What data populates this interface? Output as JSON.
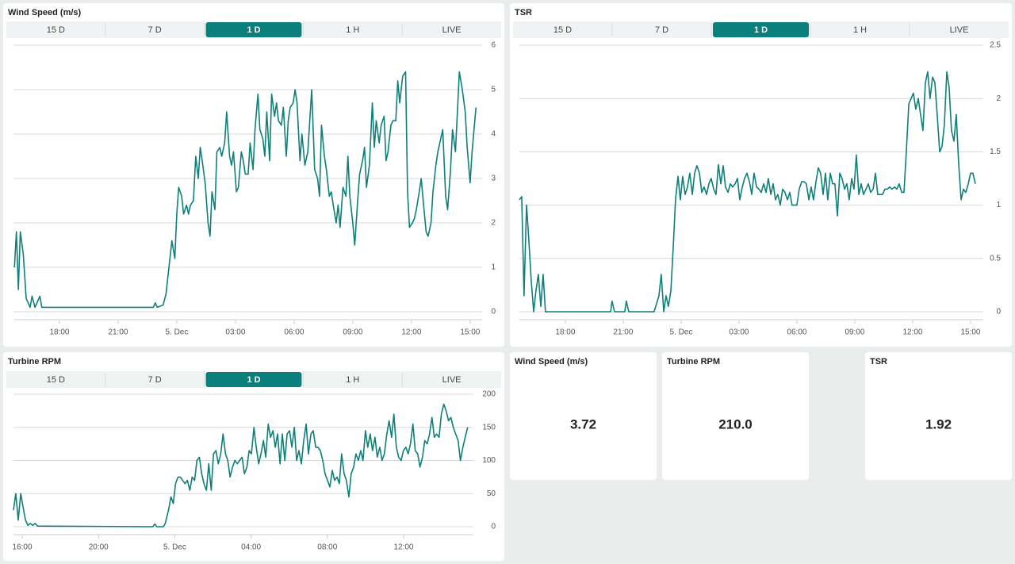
{
  "chart_data": [
    {
      "type": "line",
      "title": "Wind Speed (m/s)",
      "tabs": [
        "15 D",
        "7 D",
        "1 D",
        "1 H",
        "LIVE"
      ],
      "active_tab": 2,
      "color": "#0f7f7a",
      "grid": true,
      "xlim": [
        15.65,
        39.33
      ],
      "ylim": [
        0,
        6
      ],
      "yticks": [
        0,
        1,
        2,
        3,
        4,
        5,
        6
      ],
      "xticks": [
        {
          "value": 18,
          "label": "18:00"
        },
        {
          "value": 21,
          "label": "21:00"
        },
        {
          "value": 24,
          "label": "5. Dec"
        },
        {
          "value": 27,
          "label": "03:00"
        },
        {
          "value": 30,
          "label": "06:00"
        },
        {
          "value": 33,
          "label": "09:00"
        },
        {
          "value": 36,
          "label": "12:00"
        },
        {
          "value": 39,
          "label": "15:00"
        }
      ],
      "x": [
        15.7,
        15.8,
        15.9,
        16.0,
        16.15,
        16.3,
        16.5,
        16.6,
        16.75,
        17.0,
        17.1,
        22.8,
        22.9,
        23.0,
        23.3,
        23.45,
        23.6,
        23.75,
        23.9,
        24.0,
        24.1,
        24.25,
        24.35,
        24.5,
        24.6,
        24.7,
        24.85,
        24.97,
        25.1,
        25.2,
        25.3,
        25.45,
        25.6,
        25.7,
        25.8,
        25.95,
        26.05,
        26.2,
        26.3,
        26.45,
        26.55,
        26.7,
        26.8,
        26.9,
        27.05,
        27.15,
        27.3,
        27.4,
        27.5,
        27.65,
        27.75,
        27.9,
        28.0,
        28.15,
        28.25,
        28.4,
        28.5,
        28.6,
        28.75,
        28.85,
        29.0,
        29.1,
        29.2,
        29.35,
        29.45,
        29.6,
        29.7,
        29.8,
        29.95,
        30.05,
        30.15,
        30.3,
        30.4,
        30.55,
        30.7,
        30.8,
        30.9,
        31.05,
        31.2,
        31.3,
        31.4,
        31.55,
        31.65,
        31.8,
        31.9,
        32.0,
        32.15,
        32.25,
        32.35,
        32.5,
        32.65,
        32.75,
        32.85,
        33.0,
        33.1,
        33.25,
        33.35,
        33.5,
        33.6,
        33.7,
        33.85,
        34.0,
        34.1,
        34.2,
        34.35,
        34.45,
        34.6,
        34.7,
        34.8,
        34.95,
        35.05,
        35.2,
        35.3,
        35.4,
        35.55,
        35.7,
        35.8,
        35.9,
        36.05,
        36.15,
        36.25,
        36.4,
        36.5,
        36.6,
        36.75,
        36.85,
        37.0,
        37.1,
        37.25,
        37.35,
        37.5,
        37.6,
        37.75,
        37.85,
        38.0,
        38.1,
        38.25,
        38.35,
        38.45,
        38.6,
        38.75,
        38.85,
        39.0,
        39.1,
        39.2,
        39.3
      ],
      "values": [
        1.0,
        1.8,
        0.5,
        1.8,
        1.3,
        0.3,
        0.1,
        0.35,
        0.1,
        0.35,
        0.1,
        0.1,
        0.2,
        0.1,
        0.15,
        0.4,
        1.0,
        1.6,
        1.2,
        2.2,
        2.8,
        2.6,
        2.2,
        2.4,
        2.2,
        2.4,
        2.5,
        3.5,
        3.0,
        3.7,
        3.4,
        2.9,
        2.0,
        1.7,
        2.7,
        2.3,
        3.6,
        3.7,
        3.5,
        3.8,
        4.5,
        3.5,
        3.3,
        3.6,
        2.7,
        2.8,
        3.6,
        3.4,
        3.1,
        3.1,
        3.8,
        3.2,
        4.1,
        4.9,
        4.1,
        3.9,
        3.5,
        4.5,
        3.4,
        4.9,
        4.4,
        4.7,
        4.3,
        4.2,
        4.6,
        3.5,
        4.3,
        4.6,
        4.7,
        5.0,
        4.7,
        3.4,
        4.0,
        3.3,
        3.6,
        4.3,
        5.0,
        3.2,
        3.0,
        2.6,
        4.2,
        3.5,
        3.2,
        2.6,
        2.7,
        2.4,
        2.0,
        2.4,
        1.9,
        2.8,
        2.6,
        3.5,
        2.6,
        2.0,
        1.5,
        2.5,
        3.1,
        3.4,
        3.7,
        2.8,
        3.3,
        4.7,
        3.7,
        4.3,
        3.8,
        4.2,
        4.4,
        3.4,
        3.6,
        4.2,
        4.3,
        4.3,
        5.2,
        4.7,
        5.3,
        5.4,
        2.7,
        1.9,
        2.0,
        2.1,
        2.3,
        2.7,
        3.0,
        2.5,
        1.8,
        1.7,
        2.0,
        2.7,
        3.3,
        3.6,
        3.9,
        4.1,
        2.6,
        2.3,
        3.2,
        4.1,
        3.6,
        4.5,
        5.4,
        5.0,
        4.5,
        3.7,
        2.9,
        3.6,
        4.1,
        4.6
      ]
    },
    {
      "type": "line",
      "title": "TSR",
      "tabs": [
        "15 D",
        "7 D",
        "1 D",
        "1 H",
        "LIVE"
      ],
      "active_tab": 2,
      "color": "#0f7f7a",
      "grid": true,
      "xlim": [
        15.62,
        39.33
      ],
      "ylim": [
        0,
        2.5
      ],
      "yticks": [
        0,
        0.5,
        1,
        1.5,
        2,
        2.5
      ],
      "xticks": [
        {
          "value": 18,
          "label": "18:00"
        },
        {
          "value": 21,
          "label": "21:00"
        },
        {
          "value": 24,
          "label": "5. Dec"
        },
        {
          "value": 27,
          "label": "03:00"
        },
        {
          "value": 30,
          "label": "06:00"
        },
        {
          "value": 33,
          "label": "09:00"
        },
        {
          "value": 36,
          "label": "12:00"
        },
        {
          "value": 39,
          "label": "15:00"
        }
      ],
      "x": [
        15.62,
        15.74,
        15.86,
        15.99,
        16.1,
        16.23,
        16.36,
        16.48,
        16.6,
        16.73,
        16.85,
        16.97,
        20.35,
        20.42,
        20.55,
        21.08,
        21.16,
        21.29,
        22.6,
        22.85,
        22.97,
        23.1,
        23.22,
        23.34,
        23.47,
        23.59,
        23.71,
        23.84,
        23.96,
        24.08,
        24.21,
        24.33,
        24.45,
        24.58,
        24.7,
        24.82,
        24.95,
        25.07,
        25.19,
        25.32,
        25.44,
        25.56,
        25.69,
        25.81,
        25.93,
        26.06,
        26.18,
        26.3,
        26.43,
        26.55,
        26.67,
        26.8,
        26.92,
        27.04,
        27.17,
        27.29,
        27.41,
        27.54,
        27.66,
        27.78,
        27.91,
        28.03,
        28.15,
        28.28,
        28.4,
        28.52,
        28.65,
        28.77,
        28.89,
        29.01,
        29.14,
        29.26,
        29.38,
        29.51,
        29.63,
        29.75,
        29.88,
        30.0,
        30.12,
        30.25,
        30.37,
        30.49,
        30.62,
        30.74,
        30.86,
        30.99,
        31.11,
        31.23,
        31.36,
        31.48,
        31.6,
        31.73,
        31.85,
        31.97,
        32.1,
        32.22,
        32.34,
        32.47,
        32.59,
        32.71,
        32.84,
        32.96,
        33.08,
        33.21,
        33.33,
        33.45,
        33.58,
        33.7,
        33.82,
        33.95,
        34.07,
        34.19,
        34.32,
        34.44,
        34.56,
        34.69,
        34.81,
        34.93,
        35.06,
        35.18,
        35.3,
        35.43,
        35.55,
        35.67,
        35.8,
        35.92,
        36.04,
        36.16,
        36.29,
        36.41,
        36.53,
        36.66,
        36.78,
        36.9,
        37.03,
        37.15,
        37.27,
        37.4,
        37.52,
        37.64,
        37.77,
        37.89,
        38.01,
        38.14,
        38.26,
        38.38,
        38.51,
        38.63,
        38.75,
        38.88,
        39.0,
        39.12,
        39.25
      ],
      "values": [
        1.05,
        1.08,
        0.15,
        1.0,
        0.7,
        0.3,
        0.0,
        0.2,
        0.35,
        0.05,
        0.35,
        0,
        0,
        0.1,
        0,
        0,
        0.1,
        0,
        0,
        0.15,
        0.35,
        0,
        0.15,
        0.05,
        0.2,
        0.6,
        1.05,
        1.27,
        1.05,
        1.27,
        1.1,
        1.17,
        1.3,
        1.1,
        1.3,
        1.37,
        1.3,
        1.12,
        1.17,
        1.1,
        1.2,
        1.25,
        1.15,
        1.1,
        1.38,
        1.2,
        1.37,
        1.17,
        1.12,
        1.2,
        1.17,
        1.2,
        1.25,
        1.05,
        1.17,
        1.25,
        1.3,
        1.22,
        1.1,
        1.3,
        1.17,
        1.15,
        1.12,
        1.2,
        1.12,
        1.25,
        1.1,
        1.2,
        1.05,
        1.1,
        1.0,
        1.15,
        1.12,
        1.05,
        1.12,
        1.0,
        1.0,
        1.0,
        1.15,
        1.22,
        1.22,
        1.2,
        1.05,
        1.17,
        1.05,
        1.22,
        1.35,
        1.3,
        1.1,
        1.3,
        1.05,
        1.3,
        1.2,
        1.2,
        0.9,
        1.3,
        1.25,
        1.15,
        1.2,
        1.05,
        1.25,
        1.15,
        1.47,
        1.1,
        1.2,
        1.1,
        1.15,
        1.2,
        1.12,
        1.15,
        1.3,
        1.1,
        1.1,
        1.1,
        1.15,
        1.15,
        1.17,
        1.15,
        1.17,
        1.15,
        1.2,
        1.12,
        1.12,
        1.5,
        1.95,
        2.0,
        2.05,
        1.9,
        2.0,
        1.85,
        1.7,
        2.15,
        2.25,
        2.0,
        2.2,
        2.15,
        1.85,
        1.5,
        1.55,
        1.75,
        2.25,
        2.1,
        1.7,
        1.6,
        1.85,
        1.4,
        1.05,
        1.15,
        1.12,
        1.2,
        1.3,
        1.3,
        1.2
      ]
    },
    {
      "type": "line",
      "title": "Turbine RPM",
      "tabs": [
        "15 D",
        "7 D",
        "1 D",
        "1 H",
        "LIVE"
      ],
      "active_tab": 2,
      "color": "#0f7f7a",
      "grid": true,
      "xlim": [
        15.54,
        39.37
      ],
      "ylim": [
        0,
        200
      ],
      "yticks": [
        0,
        50,
        100,
        150,
        200
      ],
      "xticks": [
        {
          "value": 16,
          "label": "16:00"
        },
        {
          "value": 20,
          "label": "20:00"
        },
        {
          "value": 24,
          "label": "5. Dec"
        },
        {
          "value": 28,
          "label": "04:00"
        },
        {
          "value": 32,
          "label": "08:00"
        },
        {
          "value": 36,
          "label": "12:00"
        }
      ],
      "x": [
        15.54,
        15.66,
        15.79,
        15.92,
        16.04,
        16.17,
        16.3,
        16.42,
        16.55,
        16.68,
        16.8,
        22.84,
        22.96,
        23.05,
        23.4,
        23.5,
        23.67,
        23.8,
        23.92,
        24.04,
        24.17,
        24.29,
        24.41,
        24.54,
        24.66,
        24.79,
        24.91,
        25.04,
        25.16,
        25.29,
        25.41,
        25.53,
        25.66,
        25.78,
        25.91,
        26.03,
        26.16,
        26.28,
        26.41,
        26.53,
        26.66,
        26.78,
        26.9,
        27.03,
        27.15,
        27.28,
        27.4,
        27.53,
        27.65,
        27.78,
        27.9,
        28.02,
        28.15,
        28.27,
        28.4,
        28.52,
        28.65,
        28.77,
        28.9,
        29.02,
        29.15,
        29.27,
        29.39,
        29.52,
        29.64,
        29.77,
        29.89,
        30.02,
        30.14,
        30.27,
        30.39,
        30.51,
        30.64,
        30.76,
        30.89,
        31.01,
        31.14,
        31.26,
        31.39,
        31.51,
        31.63,
        31.76,
        31.88,
        32.01,
        32.13,
        32.26,
        32.38,
        32.51,
        32.63,
        32.75,
        32.88,
        33.0,
        33.13,
        33.25,
        33.38,
        33.5,
        33.63,
        33.75,
        33.87,
        34.0,
        34.12,
        34.25,
        34.37,
        34.5,
        34.62,
        34.75,
        34.87,
        34.99,
        35.12,
        35.24,
        35.37,
        35.49,
        35.62,
        35.74,
        35.87,
        35.99,
        36.12,
        36.24,
        36.36,
        36.49,
        36.61,
        36.74,
        36.86,
        36.99,
        37.11,
        37.24,
        37.36,
        37.49,
        37.61,
        37.73,
        37.86,
        37.98,
        38.11,
        38.23,
        38.36,
        38.48,
        38.61,
        38.73,
        38.86,
        38.98,
        39.11,
        39.23,
        39.36
      ],
      "values": [
        25,
        50,
        10,
        50,
        30,
        10,
        2,
        5,
        2,
        5,
        1,
        0,
        4,
        0,
        0,
        5,
        25,
        45,
        35,
        65,
        75,
        75,
        70,
        65,
        70,
        55,
        75,
        70,
        100,
        105,
        80,
        65,
        55,
        95,
        55,
        110,
        115,
        95,
        110,
        140,
        110,
        100,
        75,
        90,
        100,
        95,
        100,
        105,
        80,
        90,
        115,
        110,
        150,
        120,
        95,
        110,
        130,
        105,
        155,
        135,
        145,
        120,
        140,
        95,
        140,
        100,
        140,
        145,
        120,
        150,
        100,
        115,
        95,
        130,
        155,
        110,
        140,
        145,
        120,
        120,
        115,
        100,
        80,
        70,
        60,
        85,
        70,
        75,
        65,
        110,
        80,
        70,
        45,
        80,
        90,
        110,
        100,
        115,
        100,
        145,
        120,
        140,
        115,
        135,
        105,
        120,
        100,
        110,
        140,
        160,
        135,
        170,
        120,
        105,
        100,
        115,
        120,
        110,
        125,
        155,
        115,
        110,
        90,
        105,
        130,
        125,
        140,
        165,
        135,
        140,
        135,
        170,
        185,
        175,
        160,
        165,
        150,
        140,
        130,
        100,
        120,
        135,
        150
      ]
    }
  ],
  "tiles": [
    {
      "title": "Wind Speed (m/s)",
      "value": "3.72"
    },
    {
      "title": "Turbine RPM",
      "value": "210.0"
    },
    {
      "title": "TSR",
      "value": "1.92"
    }
  ]
}
